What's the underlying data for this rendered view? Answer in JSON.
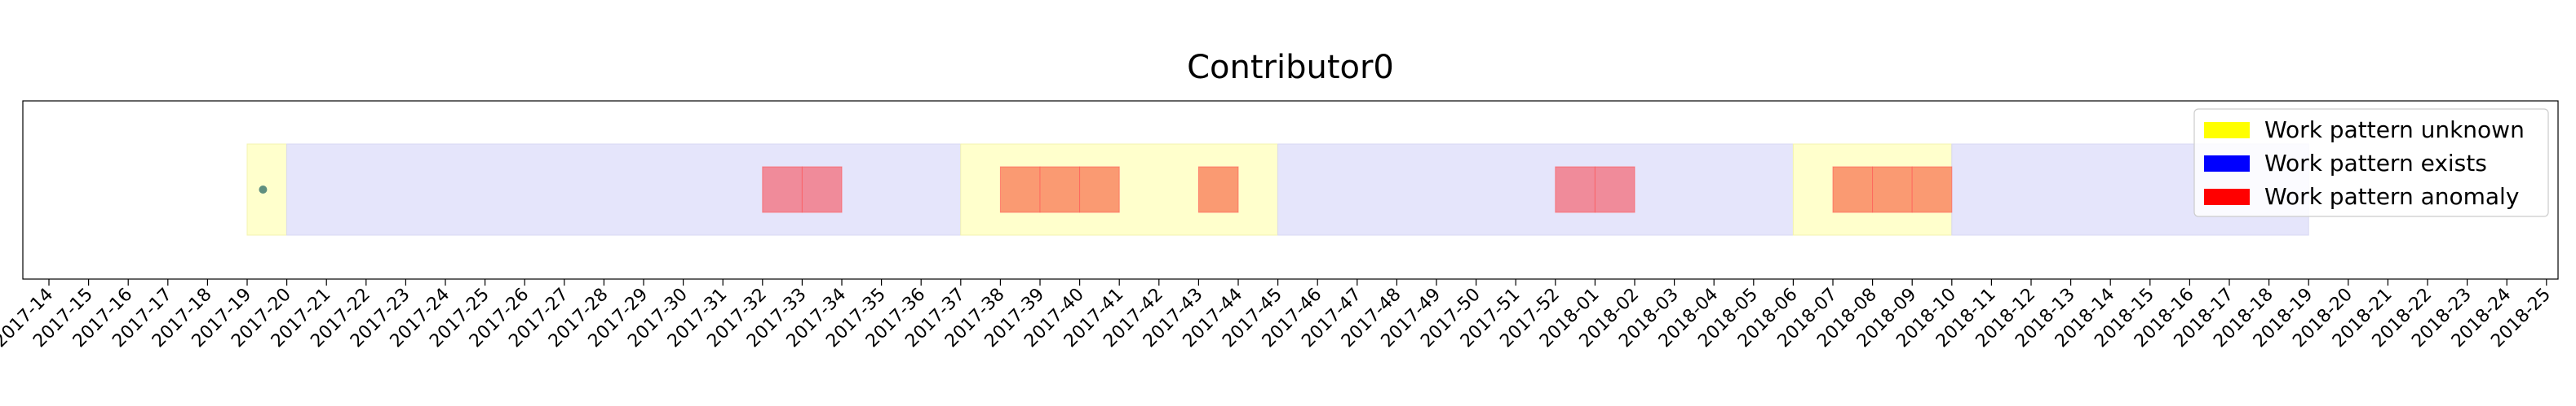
{
  "chart_data": {
    "type": "timeline",
    "title": "Contributor0",
    "xlabel": "",
    "ylabel": "",
    "x_ticks": [
      "2017-14",
      "2017-15",
      "2017-16",
      "2017-17",
      "2017-18",
      "2017-19",
      "2017-20",
      "2017-21",
      "2017-22",
      "2017-23",
      "2017-24",
      "2017-25",
      "2017-26",
      "2017-27",
      "2017-28",
      "2017-29",
      "2017-30",
      "2017-31",
      "2017-32",
      "2017-33",
      "2017-34",
      "2017-35",
      "2017-36",
      "2017-37",
      "2017-38",
      "2017-39",
      "2017-40",
      "2017-41",
      "2017-42",
      "2017-43",
      "2017-44",
      "2017-45",
      "2017-46",
      "2017-47",
      "2017-48",
      "2017-49",
      "2017-50",
      "2017-51",
      "2017-52",
      "2018-01",
      "2018-02",
      "2018-03",
      "2018-04",
      "2018-05",
      "2018-06",
      "2018-07",
      "2018-08",
      "2018-09",
      "2018-10",
      "2018-11",
      "2018-12",
      "2018-13",
      "2018-14",
      "2018-15",
      "2018-16",
      "2018-17",
      "2018-18",
      "2018-19",
      "2018-20",
      "2018-21",
      "2018-22",
      "2018-23",
      "2018-24",
      "2018-25"
    ],
    "legend": {
      "position": "top-right",
      "entries": [
        {
          "label": "Work pattern unknown",
          "color": "#ffff00"
        },
        {
          "label": "Work pattern exists",
          "color": "#0000ff"
        },
        {
          "label": "Work pattern anomaly",
          "color": "#ff0000"
        }
      ]
    },
    "periods": [
      {
        "start": "2017-19",
        "end": "2017-20",
        "pattern": "unknown"
      },
      {
        "start": "2017-20",
        "end": "2017-37",
        "pattern": "exists"
      },
      {
        "start": "2017-37",
        "end": "2017-45",
        "pattern": "unknown"
      },
      {
        "start": "2017-45",
        "end": "2018-06",
        "pattern": "exists"
      },
      {
        "start": "2018-06",
        "end": "2018-10",
        "pattern": "unknown"
      },
      {
        "start": "2018-10",
        "end": "2018-19",
        "pattern": "exists"
      }
    ],
    "anomalies": [
      {
        "week": "2017-32",
        "within": "exists"
      },
      {
        "week": "2017-33",
        "within": "exists"
      },
      {
        "week": "2017-38",
        "within": "unknown"
      },
      {
        "week": "2017-39",
        "within": "unknown"
      },
      {
        "week": "2017-40",
        "within": "unknown"
      },
      {
        "week": "2017-43",
        "within": "unknown"
      },
      {
        "week": "2017-52",
        "within": "exists"
      },
      {
        "week": "2018-01",
        "within": "exists"
      },
      {
        "week": "2018-07",
        "within": "unknown"
      },
      {
        "week": "2018-08",
        "within": "unknown"
      },
      {
        "week": "2018-09",
        "within": "unknown"
      }
    ],
    "markers": [
      {
        "week": "2017-19",
        "offset": 0.4,
        "color": "#5f8f7f"
      }
    ],
    "colors": {
      "unknown_fill": "#ffffcc",
      "exists_fill": "#e5e5fb",
      "anomaly_in_exists": "#f08b9a",
      "anomaly_in_unknown": "#fa9a72",
      "anomaly_edge": "#ff5555"
    },
    "grid": false
  }
}
